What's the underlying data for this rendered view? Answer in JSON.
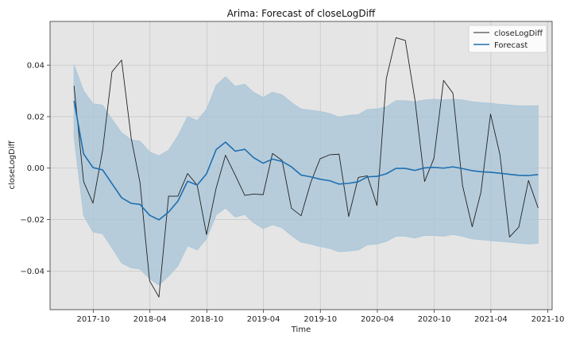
{
  "chart_data": {
    "type": "line",
    "title": "Arima: Forecast of closeLogDiff",
    "xlabel": "Time",
    "ylabel": "closeLogDiff",
    "xlim": [
      "2017-05-15",
      "2021-10-15"
    ],
    "ylim": [
      -0.055,
      0.057
    ],
    "x_ticks": [
      "2017-10",
      "2018-04",
      "2018-10",
      "2019-04",
      "2019-10",
      "2020-04",
      "2020-10",
      "2021-04",
      "2021-10"
    ],
    "y_ticks": [
      -0.04,
      -0.02,
      0.0,
      0.02,
      0.04
    ],
    "y_tick_labels": [
      "−0.04",
      "−0.02",
      "0.00",
      "0.02",
      "0.04"
    ],
    "grid": true,
    "legend_position": "top-right",
    "x": [
      "2017-07-31",
      "2017-08-31",
      "2017-09-30",
      "2017-10-31",
      "2017-11-30",
      "2017-12-31",
      "2018-01-31",
      "2018-02-28",
      "2018-03-31",
      "2018-04-30",
      "2018-05-31",
      "2018-06-30",
      "2018-07-31",
      "2018-08-31",
      "2018-09-30",
      "2018-10-31",
      "2018-11-30",
      "2018-12-31",
      "2019-01-31",
      "2019-02-28",
      "2019-03-31",
      "2019-04-30",
      "2019-05-31",
      "2019-06-30",
      "2019-07-31",
      "2019-08-31",
      "2019-09-30",
      "2019-10-31",
      "2019-11-30",
      "2019-12-31",
      "2020-01-31",
      "2020-02-29",
      "2020-03-31",
      "2020-04-30",
      "2020-05-31",
      "2020-06-30",
      "2020-07-31",
      "2020-08-31",
      "2020-09-30",
      "2020-10-31",
      "2020-11-30",
      "2020-12-31",
      "2021-01-31",
      "2021-02-28",
      "2021-03-31",
      "2021-04-30",
      "2021-05-31",
      "2021-06-30",
      "2021-07-31",
      "2021-08-31"
    ],
    "series": [
      {
        "name": "closeLogDiff",
        "color": "#222222",
        "values": [
          0.032,
          -0.0053,
          -0.0136,
          0.0069,
          0.0374,
          0.042,
          0.0115,
          -0.0055,
          -0.0438,
          -0.0501,
          -0.0109,
          -0.0109,
          -0.0021,
          -0.0066,
          -0.0258,
          -0.0077,
          0.005,
          -0.0027,
          -0.0106,
          -0.0101,
          -0.0103,
          0.0057,
          0.003,
          -0.0156,
          -0.0185,
          -0.0056,
          0.0036,
          0.0052,
          0.0054,
          -0.0188,
          -0.0036,
          -0.003,
          -0.0145,
          0.0348,
          0.0507,
          0.0496,
          0.0265,
          -0.0052,
          0.0038,
          0.0341,
          0.0291,
          -0.0068,
          -0.0228,
          -0.0094,
          0.021,
          0.0054,
          -0.0268,
          -0.0229,
          -0.0048,
          -0.0155
        ]
      },
      {
        "name": "Forecast",
        "color": "#1f6fb0",
        "values": [
          0.0261,
          0.0055,
          0.0002,
          -0.0007,
          -0.006,
          -0.0115,
          -0.0137,
          -0.0141,
          -0.0183,
          -0.0201,
          -0.0171,
          -0.0128,
          -0.0051,
          -0.0066,
          -0.0022,
          0.0072,
          0.0101,
          0.0066,
          0.0073,
          0.0041,
          0.0019,
          0.0035,
          0.0026,
          0.0005,
          -0.0027,
          -0.0034,
          -0.0043,
          -0.0049,
          -0.0062,
          -0.0059,
          -0.0053,
          -0.0034,
          -0.0032,
          -0.0022,
          -0.0001,
          -0.0001,
          -0.0009,
          0.0001,
          0.0003,
          0.0,
          0.0005,
          -0.0002,
          -0.001,
          -0.0014,
          -0.0016,
          -0.002,
          -0.0024,
          -0.0028,
          -0.0029,
          -0.0025
        ]
      }
    ],
    "band": {
      "color": "#aac6d8",
      "upper": [
        0.0402,
        0.03,
        0.025,
        0.0245,
        0.019,
        0.0138,
        0.011,
        0.0105,
        0.0063,
        0.0048,
        0.007,
        0.0125,
        0.02,
        0.0185,
        0.0228,
        0.0322,
        0.0355,
        0.0318,
        0.0326,
        0.0295,
        0.0275,
        0.0295,
        0.0285,
        0.0255,
        0.023,
        0.0225,
        0.022,
        0.0212,
        0.0198,
        0.0205,
        0.0208,
        0.0228,
        0.023,
        0.0238,
        0.0262,
        0.0262,
        0.0258,
        0.0265,
        0.0268,
        0.0265,
        0.0268,
        0.0265,
        0.0258,
        0.0255,
        0.0252,
        0.0248,
        0.0245,
        0.0242,
        0.0242,
        0.0243
      ],
      "lower": [
        0.012,
        -0.0185,
        -0.0248,
        -0.0255,
        -0.031,
        -0.0368,
        -0.0388,
        -0.0392,
        -0.043,
        -0.0455,
        -0.042,
        -0.038,
        -0.0302,
        -0.0318,
        -0.0275,
        -0.0182,
        -0.0155,
        -0.019,
        -0.018,
        -0.0212,
        -0.0235,
        -0.022,
        -0.0232,
        -0.0262,
        -0.0288,
        -0.0295,
        -0.0305,
        -0.0312,
        -0.0325,
        -0.0322,
        -0.0318,
        -0.0298,
        -0.0295,
        -0.0285,
        -0.0265,
        -0.0265,
        -0.0272,
        -0.0262,
        -0.0262,
        -0.0265,
        -0.0258,
        -0.0265,
        -0.0275,
        -0.0278,
        -0.0282,
        -0.0285,
        -0.0288,
        -0.0292,
        -0.0295,
        -0.0292
      ]
    }
  }
}
